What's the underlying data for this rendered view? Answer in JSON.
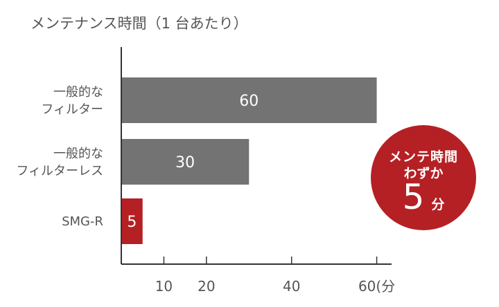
{
  "colors": {
    "accent": "#b52025",
    "bar": "#737373",
    "axis": "#333333",
    "text": "#555555"
  },
  "chart_data": {
    "type": "bar",
    "orientation": "horizontal",
    "title": "メンテナンス時間（1 台あたり）",
    "categories": [
      [
        "一般的な",
        "フィルター"
      ],
      [
        "一般的な",
        "フィルターレス"
      ],
      [
        "SMG-R"
      ]
    ],
    "values": [
      60,
      30,
      5
    ],
    "value_labels": [
      "60",
      "30",
      "5"
    ],
    "highlight": [
      false,
      false,
      true
    ],
    "xlim": [
      0,
      63
    ],
    "x_ticks": [
      10,
      20,
      40,
      60
    ],
    "x_tick_labels": [
      "10",
      "20",
      "40",
      "60(分"
    ],
    "grid": false
  },
  "badge": {
    "line1": "メンテ時間",
    "line2": "わずか",
    "number": "5",
    "unit": "分"
  }
}
